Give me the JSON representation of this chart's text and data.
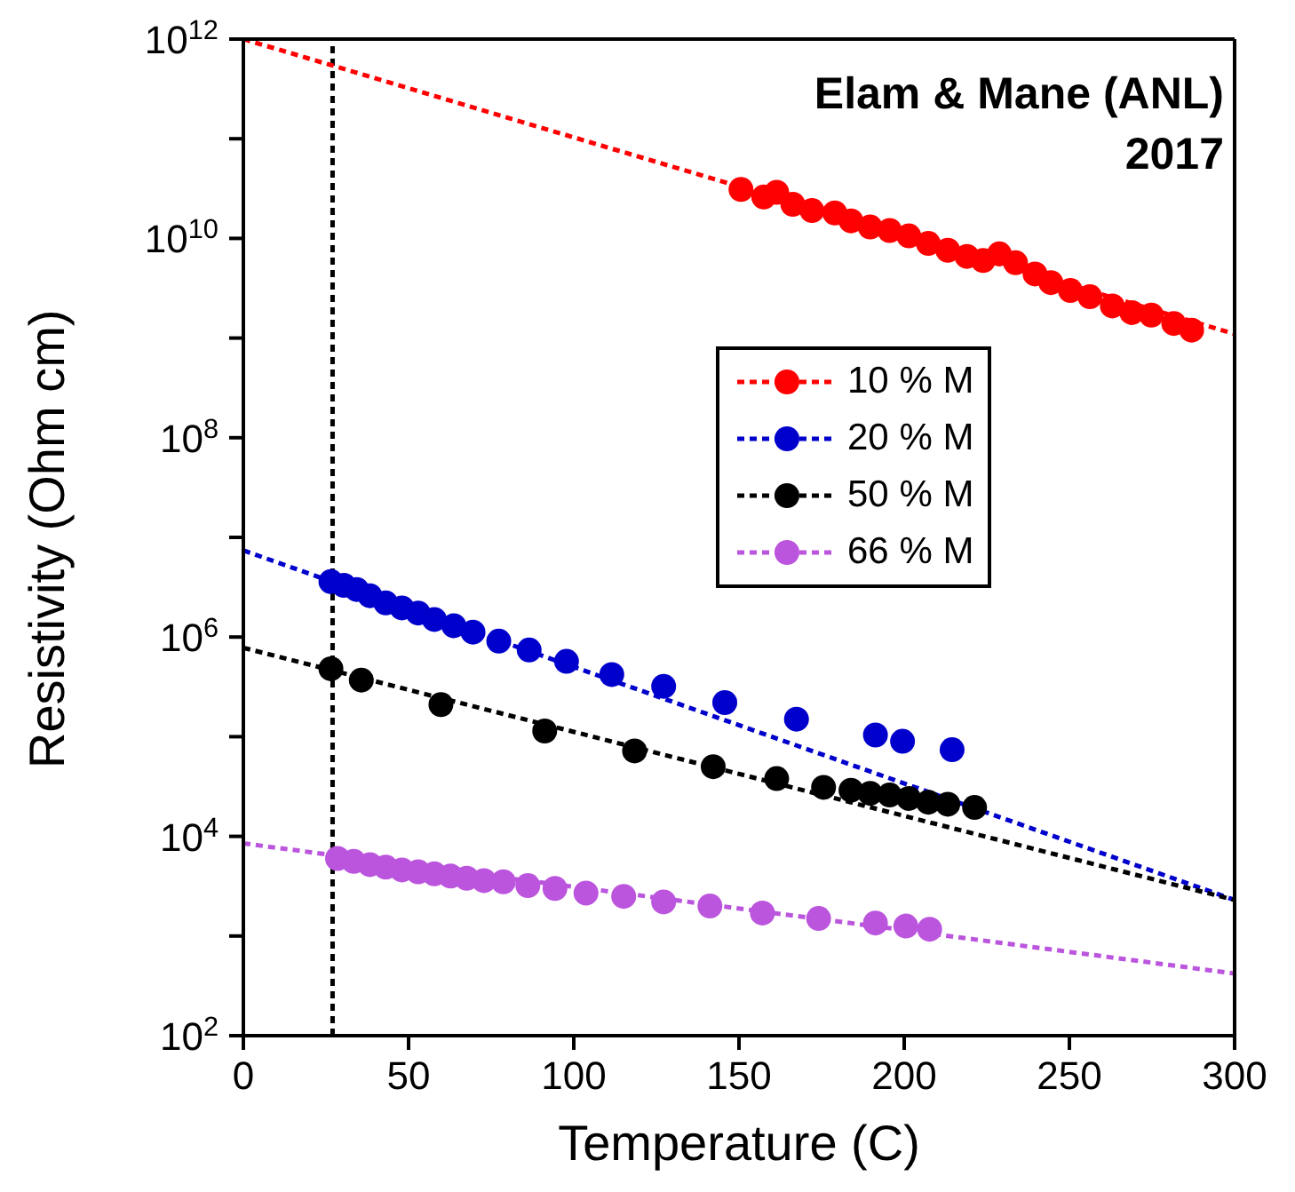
{
  "chart_data": {
    "type": "scatter",
    "xlabel": "Temperature (C)",
    "ylabel": "Resistivity (Ohm cm)",
    "annotations": [
      "Elam & Mane (ANL)",
      "2017"
    ],
    "log": "y",
    "xlim": [
      0,
      300
    ],
    "xticks": [
      0,
      50,
      100,
      150,
      200,
      250,
      300
    ],
    "ylim": [
      100,
      1000000000000
    ],
    "yticks": [
      {
        "value": 100,
        "label": "10$^{2}$"
      },
      {
        "value": 1000,
        "label": null
      },
      {
        "value": 10000,
        "label": "10$^{4}$"
      },
      {
        "value": 100000,
        "label": null
      },
      {
        "value": 1000000,
        "label": "10$^{6}$"
      },
      {
        "value": 10000000,
        "label": null
      },
      {
        "value": 100000000,
        "label": "10$^{8}$"
      },
      {
        "value": 1000000000,
        "label": null
      },
      {
        "value": 10000000000,
        "label": "10$^{10}$"
      },
      {
        "value": 100000000000,
        "label": null
      },
      {
        "value": 1000000000000,
        "label": "10$^{12}$"
      }
    ],
    "grid": false,
    "legend": "right",
    "marker": "circle",
    "ref_lines": [
      {
        "axis": "x",
        "value": 27,
        "color": "#000000",
        "line_style": "dashed"
      }
    ],
    "series": [
      {
        "name": "10 % M",
        "color": "#ff0000",
        "x": [
          150.6,
          157.5,
          161.4,
          166.3,
          172.1,
          179.0,
          183.9,
          189.7,
          195.6,
          201.4,
          207.3,
          213.2,
          219.0,
          223.9,
          228.8,
          233.7,
          239.6,
          244.4,
          250.3,
          256.2,
          263.0,
          268.9,
          274.8,
          281.6,
          287.0
        ],
        "values": [
          31000000000,
          26000000000,
          29000000000,
          22000000000,
          19000000000,
          18000000000,
          15000000000,
          13000000000,
          12000000000,
          10600000000,
          8900000000,
          7600000000,
          6600000000,
          6000000000,
          7000000000,
          5700000000,
          4400000000,
          3600000000,
          3000000000,
          2600000000,
          2100000000,
          1800000000,
          1700000000,
          1400000000,
          1200000000
        ]
      },
      {
        "name": "20 % M",
        "color": "#0000cc",
        "x": [
          26.5,
          30.4,
          34.3,
          38.3,
          43.1,
          48.0,
          52.9,
          57.8,
          63.7,
          69.5,
          77.3,
          86.5,
          97.8,
          111.5,
          127.2,
          145.7,
          167.4,
          191.3,
          199.5,
          214.5
        ],
        "values": [
          3600000,
          3300000,
          3000000,
          2600000,
          2200000,
          1960000,
          1740000,
          1500000,
          1300000,
          1120000,
          910000,
          740000,
          570000,
          420000,
          320000,
          220000,
          150000,
          104000,
          90000,
          74000
        ]
      },
      {
        "name": "50 % M",
        "color": "#000000",
        "x": [
          26.5,
          35.7,
          59.8,
          91.2,
          118.4,
          142.2,
          161.4,
          175.6,
          183.9,
          189.7,
          195.6,
          201.4,
          207.3,
          213.2,
          221.3
        ],
        "values": [
          480000,
          370000,
          210000,
          114000,
          72000,
          50000,
          38000,
          31000,
          29000,
          27000,
          26000,
          24000,
          22000,
          21000,
          19500
        ]
      },
      {
        "name": "66 % M",
        "color": "#bb55dd",
        "x": [
          28.5,
          33.4,
          38.3,
          43.1,
          48.0,
          52.9,
          57.8,
          62.7,
          67.6,
          72.8,
          78.7,
          86.1,
          94.3,
          103.7,
          115.1,
          127.2,
          141.2,
          157.1,
          174.1,
          191.3,
          200.5,
          207.7
        ],
        "values": [
          6000,
          5600,
          5200,
          4900,
          4600,
          4400,
          4200,
          4000,
          3800,
          3600,
          3500,
          3200,
          3000,
          2700,
          2500,
          2200,
          2000,
          1700,
          1500,
          1350,
          1260,
          1170
        ]
      },
      {
        "type": "line",
        "line_style": "dashed",
        "marker": "none",
        "color": "#ff0000",
        "x": [
          0,
          300
        ],
        "values": [
          1000000000000,
          1100000000
        ]
      },
      {
        "type": "line",
        "line_style": "dashed",
        "marker": "none",
        "color": "#0000cc",
        "x": [
          0,
          300
        ],
        "values": [
          7400000,
          2300
        ]
      },
      {
        "type": "line",
        "line_style": "dashed",
        "marker": "none",
        "color": "#000000",
        "x": [
          0,
          300
        ],
        "values": [
          780000,
          2300
        ]
      },
      {
        "type": "line",
        "line_style": "dashed",
        "marker": "none",
        "color": "#bb55dd",
        "x": [
          0,
          300
        ],
        "values": [
          8500,
          420
        ]
      }
    ]
  }
}
